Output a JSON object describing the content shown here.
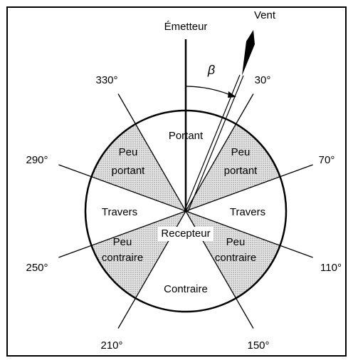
{
  "top_label": "Émetteur",
  "wind_label": "Vent",
  "angle_symbol": "β",
  "center_label": "Recepteur",
  "angles": [
    "30°",
    "70°",
    "110°",
    "150°",
    "210°",
    "250°",
    "290°",
    "330°"
  ],
  "zones": {
    "portant": "Portant",
    "peu_portant_right": [
      "Peu",
      "portant"
    ],
    "travers_right": "Travers",
    "peu_contraire_right": [
      "Peu",
      "contraire"
    ],
    "contraire": "Contraire",
    "peu_contraire_left": [
      "Peu",
      "contraire"
    ],
    "travers_left": "Travers",
    "peu_portant_left": [
      "Peu",
      "portant"
    ]
  }
}
